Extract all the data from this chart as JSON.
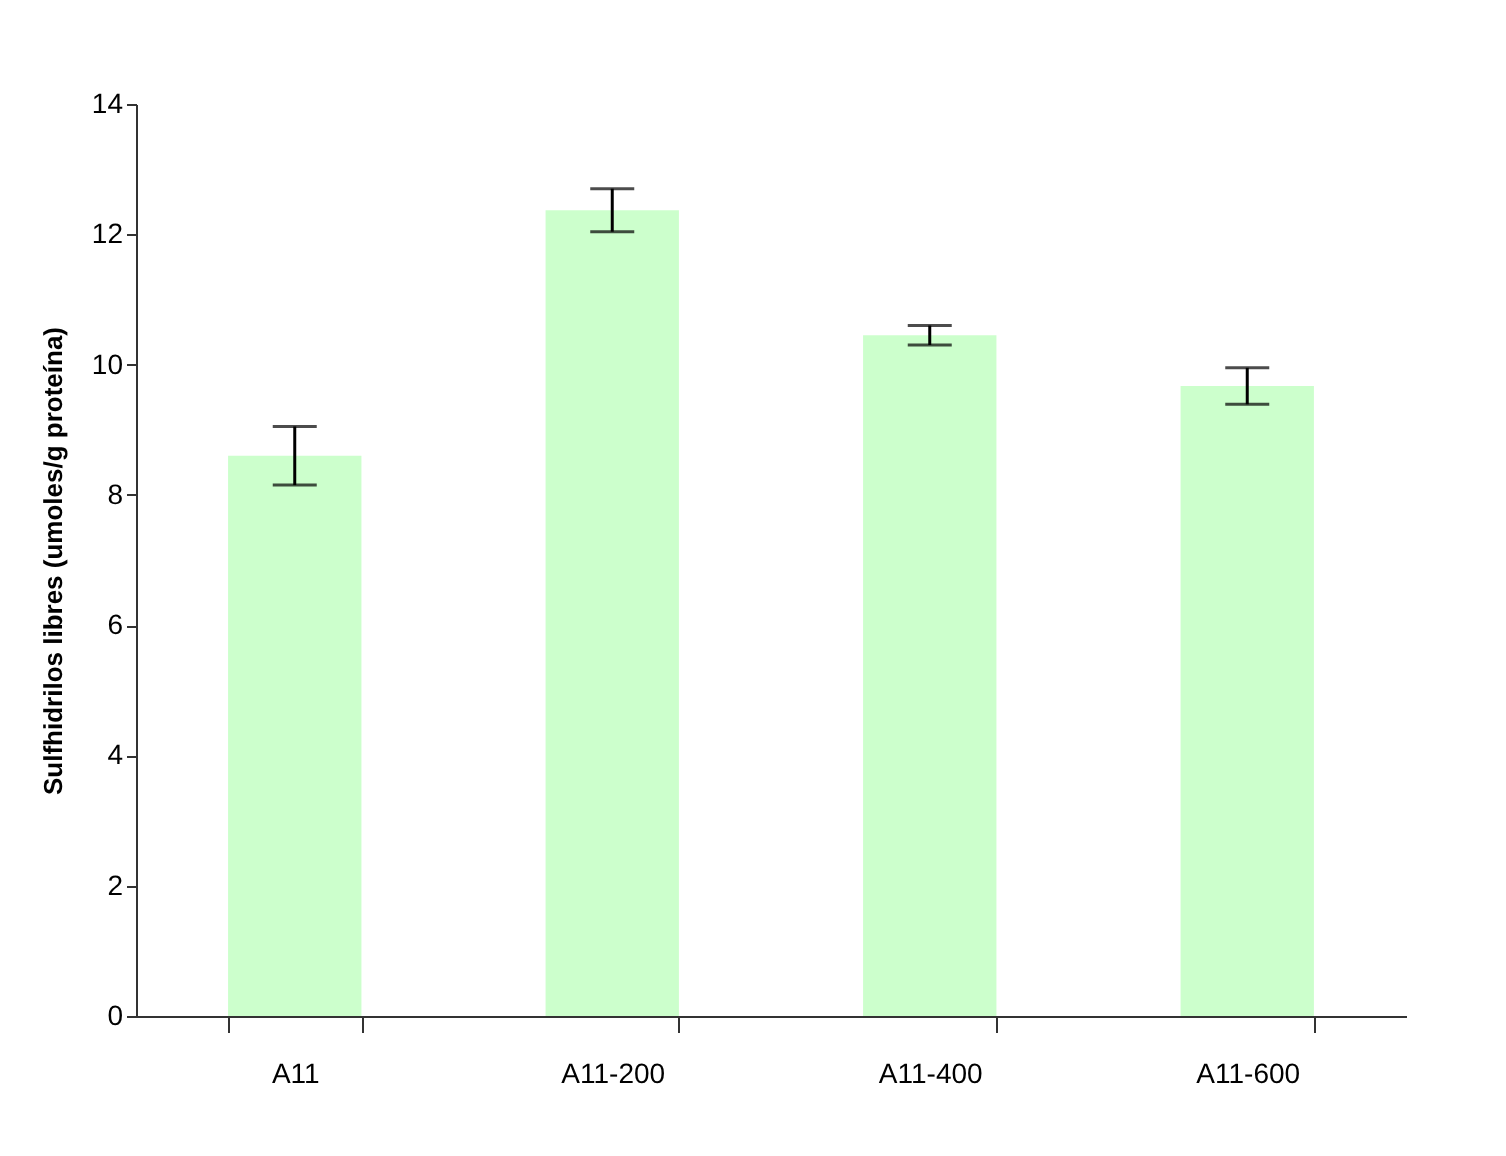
{
  "chart_data": {
    "type": "bar",
    "ylabel": "Sulfhidrilos libres (umoles/g proteína)",
    "categories": [
      "A11",
      "A11-200",
      "A11-400",
      "A11-600"
    ],
    "values": [
      8.6,
      12.37,
      10.45,
      9.67
    ],
    "errors": [
      0.45,
      0.33,
      0.15,
      0.28
    ],
    "color": "#ccffcc",
    "ylim": [
      0,
      14
    ],
    "yticks": [
      0,
      2,
      4,
      6,
      8,
      10,
      12,
      14
    ],
    "grid": false
  }
}
